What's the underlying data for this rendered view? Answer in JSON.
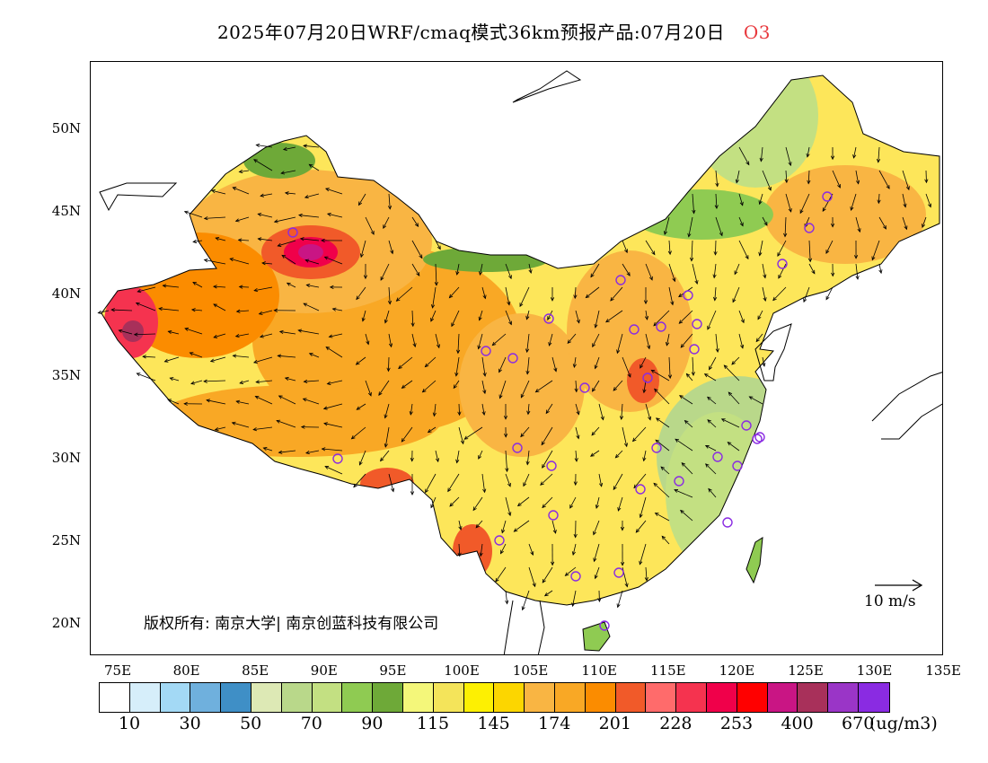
{
  "title": {
    "main": "2025年07月20日WRF/cmaq模式36km预报产品:07月20日",
    "species": "O3",
    "species_color": "#e8383d"
  },
  "axes": {
    "lat_labels": [
      "50N",
      "45N",
      "40N",
      "35N",
      "30N",
      "25N",
      "20N"
    ],
    "lon_labels": [
      "75E",
      "80E",
      "85E",
      "90E",
      "95E",
      "100E",
      "105E",
      "110E",
      "115E",
      "120E",
      "125E",
      "130E",
      "135E"
    ]
  },
  "copyright": "版权所有: 南京大学| 南京创蓝科技有限公司",
  "reference_vector": {
    "label": "10 m/s"
  },
  "colorbar": {
    "colors": [
      "#ffffff",
      "#d6eefa",
      "#a3d9f5",
      "#6fb0dd",
      "#3f8fc6",
      "#dde9b5",
      "#b9d88a",
      "#c3e082",
      "#8fcb52",
      "#6ea938",
      "#f4f77a",
      "#f4e45a",
      "#fdf002",
      "#fcd600",
      "#f9b543",
      "#f9a825",
      "#fb8c00",
      "#f15a29",
      "#ff6b6b",
      "#f5334f",
      "#f0004a",
      "#ff0000",
      "#c91584",
      "#a8305a",
      "#9a35c7",
      "#8a2be2"
    ],
    "labels": [
      "10",
      "30",
      "50",
      "70",
      "90",
      "115",
      "145",
      "174",
      "201",
      "228",
      "253",
      "400",
      "670"
    ],
    "unit": "(ug/m3)"
  },
  "map_legend": {
    "concentration_field": "O3",
    "station_marker": "purple-circle"
  }
}
